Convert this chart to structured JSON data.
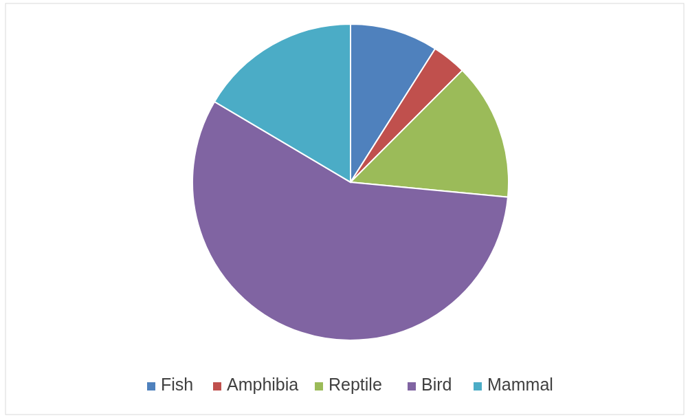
{
  "chart_data": {
    "type": "pie",
    "categories": [
      "Fish",
      "Amphibia",
      "Reptile",
      "Bird",
      "Mammal"
    ],
    "values": [
      9,
      3.5,
      14,
      57,
      16.5
    ],
    "colors": [
      "#4f81bd",
      "#c0504d",
      "#9bbb59",
      "#8064a2",
      "#4bacc6"
    ],
    "legend": "bottom"
  }
}
